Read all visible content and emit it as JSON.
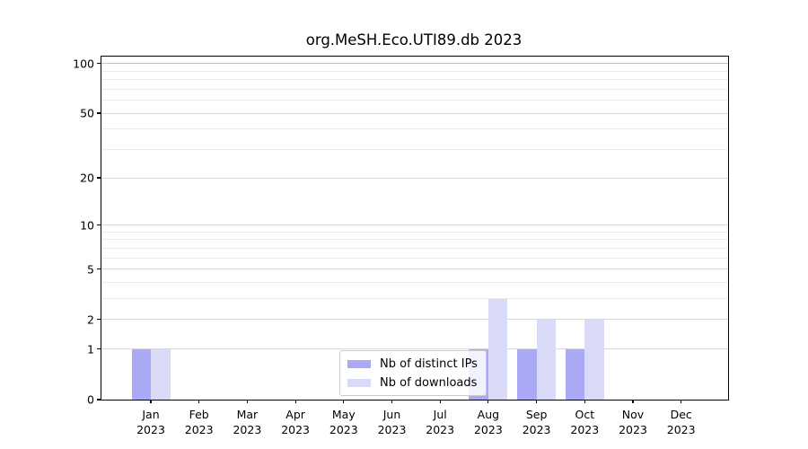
{
  "title": "org.MeSH.Eco.UTI89.db 2023",
  "legend": {
    "items": [
      {
        "label": "Nb of distinct IPs"
      },
      {
        "label": "Nb of downloads"
      }
    ]
  },
  "colors": {
    "distinct_ips_bar": "#a9a9f5",
    "downloads_bar": "#d9d9f8",
    "grid_minor": "#ebebeb",
    "grid_major": "#d7d7d7",
    "axis": "#000000"
  },
  "chart_data": {
    "type": "bar",
    "title": "org.MeSH.Eco.UTI89.db 2023",
    "x_categories": [
      "Jan 2023",
      "Feb 2023",
      "Mar 2023",
      "Apr 2023",
      "May 2023",
      "Jun 2023",
      "Jul 2023",
      "Aug 2023",
      "Sep 2023",
      "Oct 2023",
      "Nov 2023",
      "Dec 2023"
    ],
    "months": [
      {
        "month": "Jan",
        "year": "2023"
      },
      {
        "month": "Feb",
        "year": "2023"
      },
      {
        "month": "Mar",
        "year": "2023"
      },
      {
        "month": "Apr",
        "year": "2023"
      },
      {
        "month": "May",
        "year": "2023"
      },
      {
        "month": "Jun",
        "year": "2023"
      },
      {
        "month": "Jul",
        "year": "2023"
      },
      {
        "month": "Aug",
        "year": "2023"
      },
      {
        "month": "Sep",
        "year": "2023"
      },
      {
        "month": "Oct",
        "year": "2023"
      },
      {
        "month": "Nov",
        "year": "2023"
      },
      {
        "month": "Dec",
        "year": "2023"
      }
    ],
    "series": [
      {
        "name": "Nb of distinct IPs",
        "color": "#a9a9f5",
        "values": [
          1,
          0,
          0,
          0,
          0,
          0,
          0,
          1,
          1,
          1,
          0,
          0
        ]
      },
      {
        "name": "Nb of downloads",
        "color": "#d9d9f8",
        "values": [
          1,
          0,
          0,
          0,
          0,
          0,
          0,
          3,
          2,
          2,
          0,
          0
        ]
      }
    ],
    "y_axis": {
      "scale": "log10(value+1)",
      "ticks": [
        0,
        1,
        2,
        5,
        10,
        20,
        50,
        100
      ],
      "minor_gridlines": [
        3,
        4,
        6,
        7,
        8,
        9,
        30,
        40,
        60,
        70,
        80,
        90
      ],
      "ylim": [
        0,
        110
      ]
    },
    "grid": "horizontal",
    "legend_position": "lower center"
  }
}
